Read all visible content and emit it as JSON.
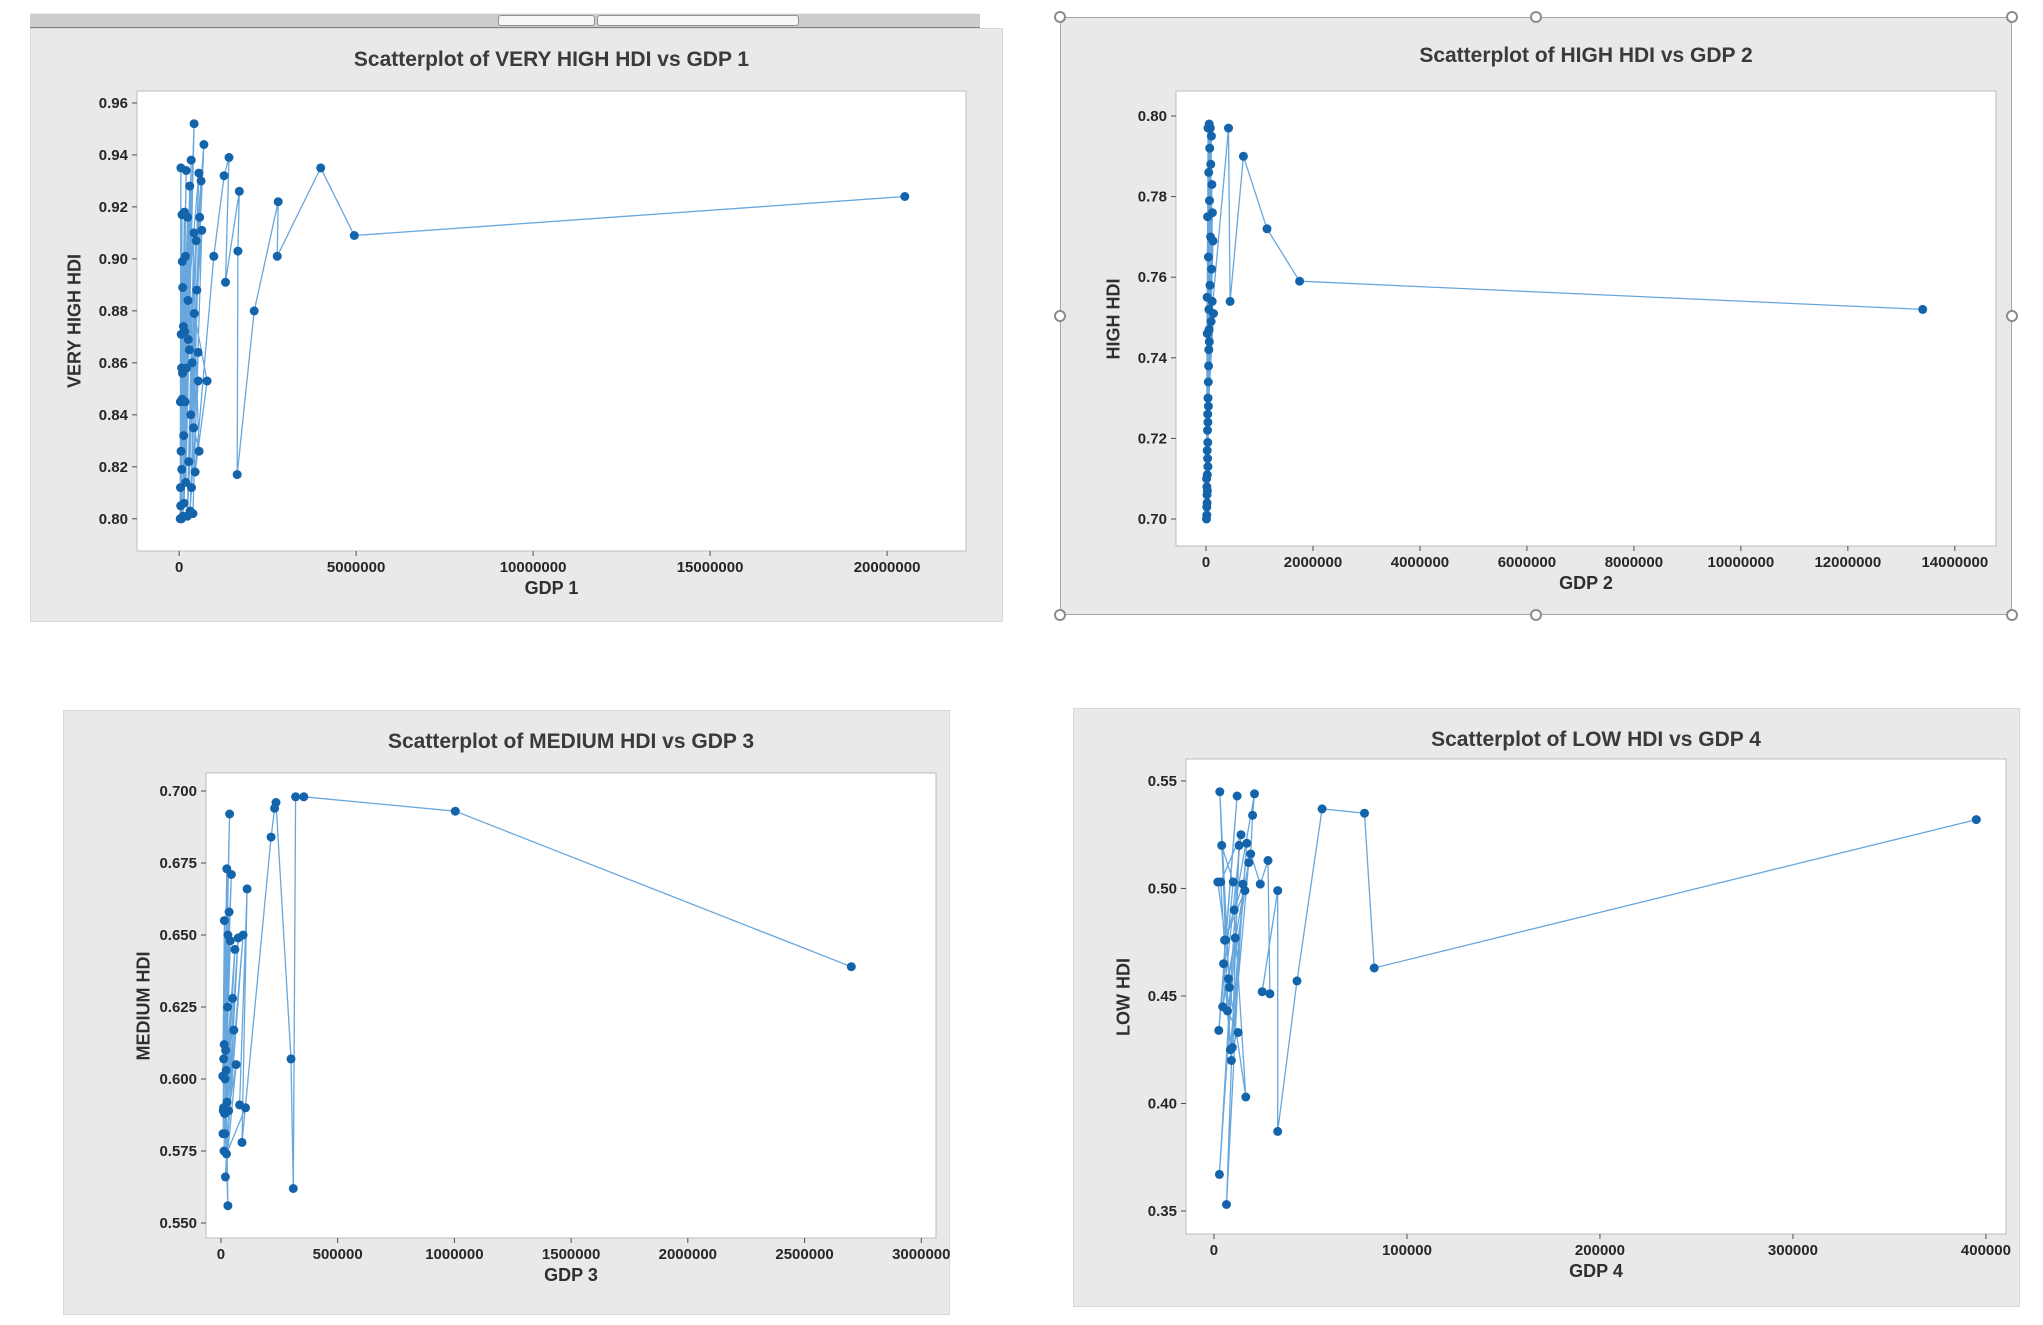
{
  "page": {
    "background": "#ffffff"
  },
  "scrollbar": {
    "present": true,
    "orientation": "horizontal"
  },
  "selection": {
    "selected_chart": "Scatterplot of HIGH HDI vs GDP 2",
    "handle_count": 8
  },
  "colors": {
    "marker": "#1464ac",
    "line": "#68a7dd",
    "panel_gray": "#e9e9e9",
    "plot_border": "#bdbdbd",
    "text": "#2f2f2f"
  },
  "chart_data": [
    {
      "type": "scatter",
      "connected": true,
      "grid": false,
      "legend": "none",
      "title": "Scatterplot of VERY HIGH HDI vs GDP 1",
      "xlabel": "GDP 1",
      "ylabel": "VERY HIGH HDI",
      "x_tick_values": [
        0,
        5000000,
        10000000,
        15000000,
        20000000
      ],
      "x_tick_labels": [
        "0",
        "5000000",
        "10000000",
        "15000000",
        "20000000"
      ],
      "y_tick_values": [
        0.96,
        0.94,
        0.92,
        0.9,
        0.88,
        0.86,
        0.84,
        0.82,
        0.8
      ],
      "y_tick_labels": [
        "0.96",
        "0.94",
        "0.92",
        "0.90",
        "0.88",
        "0.86",
        "0.84",
        "0.82",
        "0.80"
      ],
      "xlim": [
        -1190000,
        22230000
      ],
      "ylim": [
        0.7876,
        0.9646
      ],
      "points": [
        [
          30000,
          0.8
        ],
        [
          50000,
          0.935
        ],
        [
          40000,
          0.812
        ],
        [
          60000,
          0.871
        ],
        [
          35000,
          0.845
        ],
        [
          80000,
          0.917
        ],
        [
          45000,
          0.805
        ],
        [
          120000,
          0.874
        ],
        [
          70000,
          0.858
        ],
        [
          90000,
          0.899
        ],
        [
          55000,
          0.826
        ],
        [
          150000,
          0.918
        ],
        [
          65000,
          0.8
        ],
        [
          100000,
          0.889
        ],
        [
          85000,
          0.846
        ],
        [
          200000,
          0.934
        ],
        [
          75000,
          0.819
        ],
        [
          160000,
          0.872
        ],
        [
          110000,
          0.801
        ],
        [
          240000,
          0.916
        ],
        [
          95000,
          0.856
        ],
        [
          180000,
          0.901
        ],
        [
          130000,
          0.832
        ],
        [
          300000,
          0.928
        ],
        [
          140000,
          0.806
        ],
        [
          260000,
          0.869
        ],
        [
          170000,
          0.845
        ],
        [
          424000,
          0.952
        ],
        [
          190000,
          0.814
        ],
        [
          340000,
          0.938
        ],
        [
          210000,
          0.858
        ],
        [
          700000,
          0.944
        ],
        [
          230000,
          0.801
        ],
        [
          420000,
          0.91
        ],
        [
          250000,
          0.884
        ],
        [
          560000,
          0.933
        ],
        [
          270000,
          0.822
        ],
        [
          480000,
          0.907
        ],
        [
          290000,
          0.865
        ],
        [
          620000,
          0.93
        ],
        [
          310000,
          0.803
        ],
        [
          540000,
          0.853
        ],
        [
          330000,
          0.84
        ],
        [
          580000,
          0.916
        ],
        [
          350000,
          0.812
        ],
        [
          500000,
          0.888
        ],
        [
          370000,
          0.86
        ],
        [
          640000,
          0.911
        ],
        [
          390000,
          0.802
        ],
        [
          537000,
          0.864
        ],
        [
          410000,
          0.835
        ],
        [
          565000,
          0.826
        ],
        [
          430000,
          0.879
        ],
        [
          790000,
          0.853
        ],
        [
          450000,
          0.818
        ],
        [
          980000,
          0.901
        ],
        [
          1270000,
          0.932
        ],
        [
          1410000,
          0.939
        ],
        [
          1310000,
          0.891
        ],
        [
          1700000,
          0.926
        ],
        [
          1660000,
          0.903
        ],
        [
          1640000,
          0.817
        ],
        [
          2120000,
          0.88
        ],
        [
          2800000,
          0.922
        ],
        [
          2770000,
          0.901
        ],
        [
          4000000,
          0.935
        ],
        [
          4950000,
          0.909
        ],
        [
          20500000,
          0.924
        ]
      ]
    },
    {
      "type": "scatter",
      "connected": true,
      "grid": false,
      "legend": "none",
      "title": "Scatterplot of HIGH HDI vs GDP 2",
      "xlabel": "GDP 2",
      "ylabel": "HIGH HDI",
      "x_tick_values": [
        0,
        2000000,
        4000000,
        6000000,
        8000000,
        10000000,
        12000000,
        14000000
      ],
      "x_tick_labels": [
        "0",
        "2000000",
        "4000000",
        "6000000",
        "8000000",
        "10000000",
        "12000000",
        "14000000"
      ],
      "y_tick_values": [
        0.8,
        0.78,
        0.76,
        0.74,
        0.72,
        0.7
      ],
      "y_tick_labels": [
        "0.80",
        "0.78",
        "0.76",
        "0.74",
        "0.72",
        "0.70"
      ],
      "xlim": [
        -561000,
        14770000
      ],
      "ylim": [
        0.6933,
        0.8062
      ],
      "points": [
        [
          10000,
          0.7
        ],
        [
          20000,
          0.755
        ],
        [
          15000,
          0.703
        ],
        [
          30000,
          0.775
        ],
        [
          12000,
          0.71
        ],
        [
          40000,
          0.797
        ],
        [
          18000,
          0.706
        ],
        [
          25000,
          0.746
        ],
        [
          35000,
          0.713
        ],
        [
          50000,
          0.786
        ],
        [
          14000,
          0.701
        ],
        [
          45000,
          0.765
        ],
        [
          22000,
          0.717
        ],
        [
          60000,
          0.798
        ],
        [
          16000,
          0.708
        ],
        [
          55000,
          0.752
        ],
        [
          28000,
          0.722
        ],
        [
          70000,
          0.792
        ],
        [
          20000,
          0.704
        ],
        [
          65000,
          0.779
        ],
        [
          32000,
          0.726
        ],
        [
          80000,
          0.797
        ],
        [
          24000,
          0.711
        ],
        [
          75000,
          0.758
        ],
        [
          38000,
          0.73
        ],
        [
          90000,
          0.788
        ],
        [
          26000,
          0.707
        ],
        [
          85000,
          0.77
        ],
        [
          42000,
          0.734
        ],
        [
          100000,
          0.795
        ],
        [
          29000,
          0.715
        ],
        [
          95000,
          0.749
        ],
        [
          48000,
          0.738
        ],
        [
          110000,
          0.783
        ],
        [
          33000,
          0.719
        ],
        [
          105000,
          0.762
        ],
        [
          52000,
          0.742
        ],
        [
          120000,
          0.776
        ],
        [
          36000,
          0.724
        ],
        [
          115000,
          0.754
        ],
        [
          58000,
          0.747
        ],
        [
          130000,
          0.769
        ],
        [
          44000,
          0.728
        ],
        [
          140000,
          0.751
        ],
        [
          62000,
          0.744
        ],
        [
          420000,
          0.797
        ],
        [
          450000,
          0.754
        ],
        [
          700000,
          0.79
        ],
        [
          1140000,
          0.772
        ],
        [
          1750000,
          0.759
        ],
        [
          13400000,
          0.752
        ]
      ]
    },
    {
      "type": "scatter",
      "connected": true,
      "grid": false,
      "legend": "none",
      "title": "Scatterplot of MEDIUM HDI vs GDP 3",
      "xlabel": "GDP 3",
      "ylabel": "MEDIUM HDI",
      "x_tick_values": [
        0,
        500000,
        1000000,
        1500000,
        2000000,
        2500000,
        3000000
      ],
      "x_tick_labels": [
        "0",
        "500000",
        "1000000",
        "1500000",
        "2000000",
        "2500000",
        "3000000"
      ],
      "y_tick_values": [
        0.7,
        0.675,
        0.65,
        0.625,
        0.6,
        0.575,
        0.55
      ],
      "y_tick_labels": [
        "0.700",
        "0.675",
        "0.650",
        "0.625",
        "0.600",
        "0.575",
        "0.550"
      ],
      "xlim": [
        -64000,
        3063000
      ],
      "ylim": [
        0.5448,
        0.70625
      ],
      "points": [
        [
          8000,
          0.601
        ],
        [
          15000,
          0.655
        ],
        [
          10000,
          0.589
        ],
        [
          25000,
          0.673
        ],
        [
          12000,
          0.607
        ],
        [
          37000,
          0.692
        ],
        [
          9000,
          0.581
        ],
        [
          30000,
          0.65
        ],
        [
          14000,
          0.612
        ],
        [
          45000,
          0.671
        ],
        [
          11000,
          0.59
        ],
        [
          35000,
          0.658
        ],
        [
          18000,
          0.6
        ],
        [
          28000,
          0.625
        ],
        [
          13000,
          0.575
        ],
        [
          40000,
          0.648
        ],
        [
          20000,
          0.61
        ],
        [
          30000,
          0.556
        ],
        [
          16000,
          0.588
        ],
        [
          50000,
          0.628
        ],
        [
          22000,
          0.603
        ],
        [
          60000,
          0.645
        ],
        [
          17000,
          0.581
        ],
        [
          55000,
          0.617
        ],
        [
          26000,
          0.592
        ],
        [
          74000,
          0.649
        ],
        [
          19000,
          0.566
        ],
        [
          65000,
          0.605
        ],
        [
          33000,
          0.589
        ],
        [
          95000,
          0.65
        ],
        [
          24000,
          0.574
        ],
        [
          105000,
          0.59
        ],
        [
          80000,
          0.591
        ],
        [
          112000,
          0.666
        ],
        [
          90000,
          0.578
        ],
        [
          215000,
          0.684
        ],
        [
          230000,
          0.694
        ],
        [
          236000,
          0.696
        ],
        [
          300000,
          0.607
        ],
        [
          310000,
          0.562
        ],
        [
          320000,
          0.698
        ],
        [
          355000,
          0.698
        ],
        [
          1004000,
          0.693
        ],
        [
          2700000,
          0.639
        ]
      ]
    },
    {
      "type": "scatter",
      "connected": true,
      "grid": false,
      "legend": "none",
      "title": "Scatterplot of LOW HDI vs GDP 4",
      "xlabel": "GDP 4",
      "ylabel": "LOW HDI",
      "x_tick_values": [
        0,
        100000,
        200000,
        300000,
        400000
      ],
      "x_tick_labels": [
        "0",
        "100000",
        "200000",
        "300000",
        "400000"
      ],
      "y_tick_values": [
        0.55,
        0.5,
        0.45,
        0.4,
        0.35
      ],
      "y_tick_labels": [
        "0.55",
        "0.50",
        "0.45",
        "0.40",
        "0.35"
      ],
      "xlim": [
        -14500,
        410400
      ],
      "ylim": [
        0.3393,
        0.5602
      ],
      "points": [
        [
          2000,
          0.503
        ],
        [
          6000,
          0.476
        ],
        [
          3000,
          0.545
        ],
        [
          8000,
          0.454
        ],
        [
          4000,
          0.52
        ],
        [
          10000,
          0.503
        ],
        [
          2500,
          0.434
        ],
        [
          12000,
          0.543
        ],
        [
          5000,
          0.465
        ],
        [
          9000,
          0.42
        ],
        [
          3500,
          0.503
        ],
        [
          14000,
          0.525
        ],
        [
          4500,
          0.445
        ],
        [
          11000,
          0.477
        ],
        [
          2800,
          0.367
        ],
        [
          13000,
          0.52
        ],
        [
          6500,
          0.353
        ],
        [
          15000,
          0.502
        ],
        [
          5500,
          0.476
        ],
        [
          16000,
          0.499
        ],
        [
          7000,
          0.443
        ],
        [
          12500,
          0.433
        ],
        [
          8500,
          0.425
        ],
        [
          17000,
          0.521
        ],
        [
          9500,
          0.426
        ],
        [
          18000,
          0.512
        ],
        [
          7500,
          0.458
        ],
        [
          16500,
          0.403
        ],
        [
          10500,
          0.49
        ],
        [
          21000,
          0.544
        ],
        [
          20000,
          0.534
        ],
        [
          19000,
          0.516
        ],
        [
          24000,
          0.502
        ],
        [
          28000,
          0.513
        ],
        [
          29000,
          0.451
        ],
        [
          25000,
          0.452
        ],
        [
          33000,
          0.499
        ],
        [
          33000,
          0.387
        ],
        [
          43000,
          0.457
        ],
        [
          56000,
          0.537
        ],
        [
          78000,
          0.535
        ],
        [
          83000,
          0.463
        ],
        [
          395000,
          0.532
        ]
      ]
    }
  ]
}
